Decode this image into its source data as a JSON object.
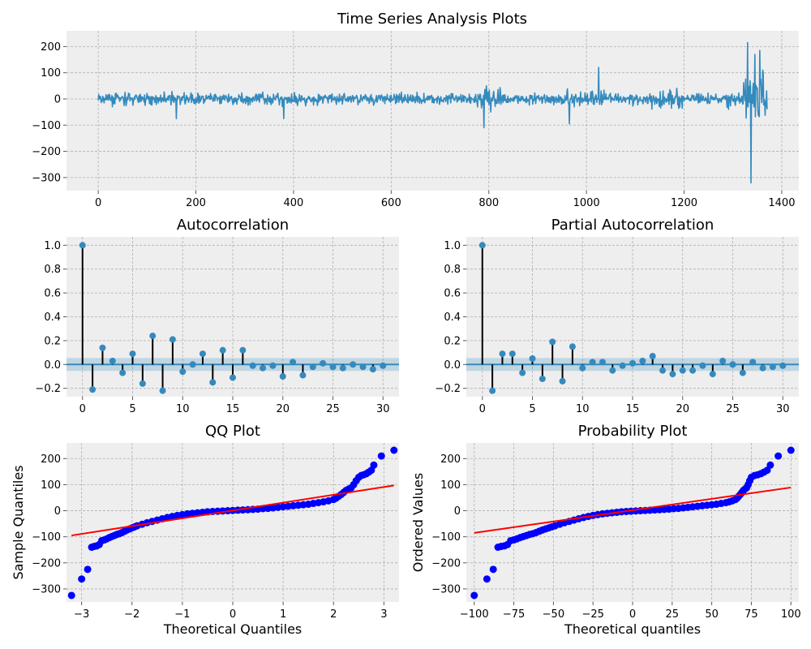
{
  "figure": {
    "background": "#ffffff",
    "panel_background": "#eeeeee",
    "grid_color": "#b0b0b0",
    "series_color": "#348abd",
    "stem_color": "#000000",
    "qq_point_color": "#0000ff",
    "qq_line_color": "#ff0000"
  },
  "chart_data": [
    {
      "id": "ts",
      "type": "line",
      "title": "Time Series Analysis Plots",
      "xlabel": "",
      "ylabel": "",
      "xlim": [
        -65,
        1435
      ],
      "ylim": [
        -350,
        260
      ],
      "xticks": [
        0,
        200,
        400,
        600,
        800,
        1000,
        1200,
        1400
      ],
      "yticks": [
        200,
        100,
        0,
        -100,
        -200,
        -300
      ],
      "grid": true,
      "n_points": 1371,
      "notable_spikes": [
        {
          "x": 160,
          "y": -75
        },
        {
          "x": 380,
          "y": -75
        },
        {
          "x": 790,
          "y": -110
        },
        {
          "x": 795,
          "y": 50
        },
        {
          "x": 965,
          "y": -95
        },
        {
          "x": 1025,
          "y": 120
        },
        {
          "x": 1330,
          "y": 215
        },
        {
          "x": 1337,
          "y": -320
        },
        {
          "x": 1345,
          "y": 170
        },
        {
          "x": 1355,
          "y": 185
        }
      ]
    },
    {
      "id": "acf",
      "type": "stem",
      "title": "Autocorrelation",
      "xlabel": "",
      "ylabel": "",
      "xlim": [
        -1.6,
        31.6
      ],
      "ylim": [
        -0.27,
        1.07
      ],
      "xticks": [
        0,
        5,
        10,
        15,
        20,
        25,
        30
      ],
      "yticks": [
        1.0,
        0.8,
        0.6,
        0.4,
        0.2,
        0.0,
        -0.2
      ],
      "confidence_band": 0.054,
      "lags": [
        0,
        1,
        2,
        3,
        4,
        5,
        6,
        7,
        8,
        9,
        10,
        11,
        12,
        13,
        14,
        15,
        16,
        17,
        18,
        19,
        20,
        21,
        22,
        23,
        24,
        25,
        26,
        27,
        28,
        29,
        30
      ],
      "values": [
        1.0,
        -0.21,
        0.14,
        0.03,
        -0.07,
        0.09,
        -0.16,
        0.24,
        -0.22,
        0.21,
        -0.06,
        0.0,
        0.09,
        -0.15,
        0.12,
        -0.11,
        0.12,
        -0.01,
        -0.03,
        -0.01,
        -0.1,
        0.02,
        -0.09,
        -0.02,
        0.01,
        -0.02,
        -0.03,
        0.0,
        -0.02,
        -0.04,
        -0.01
      ]
    },
    {
      "id": "pacf",
      "type": "stem",
      "title": "Partial Autocorrelation",
      "xlabel": "",
      "ylabel": "",
      "xlim": [
        -1.6,
        31.6
      ],
      "ylim": [
        -0.27,
        1.07
      ],
      "xticks": [
        0,
        5,
        10,
        15,
        20,
        25,
        30
      ],
      "yticks": [
        1.0,
        0.8,
        0.6,
        0.4,
        0.2,
        0.0,
        -0.2
      ],
      "confidence_band": 0.054,
      "lags": [
        0,
        1,
        2,
        3,
        4,
        5,
        6,
        7,
        8,
        9,
        10,
        11,
        12,
        13,
        14,
        15,
        16,
        17,
        18,
        19,
        20,
        21,
        22,
        23,
        24,
        25,
        26,
        27,
        28,
        29,
        30
      ],
      "values": [
        1.0,
        -0.22,
        0.09,
        0.09,
        -0.07,
        0.05,
        -0.12,
        0.19,
        -0.14,
        0.15,
        -0.03,
        0.02,
        0.02,
        -0.05,
        -0.01,
        0.01,
        0.03,
        0.07,
        -0.05,
        -0.08,
        -0.05,
        -0.05,
        -0.01,
        -0.08,
        0.03,
        0.0,
        -0.07,
        0.02,
        -0.03,
        -0.02,
        -0.01
      ]
    },
    {
      "id": "qq",
      "type": "scatter",
      "title": "QQ Plot",
      "xlabel": "Theoretical Quantiles",
      "ylabel": "Sample Quantiles",
      "xlim": [
        -3.3,
        3.3
      ],
      "ylim": [
        -350,
        260
      ],
      "xticks": [
        -3,
        -2,
        -1,
        0,
        1,
        2,
        3
      ],
      "yticks": [
        200,
        100,
        0,
        -100,
        -200,
        -300
      ],
      "fit_line": [
        [
          -3.2,
          -95
        ],
        [
          3.2,
          97
        ]
      ],
      "points": [
        [
          -3.2,
          -325
        ],
        [
          -3.0,
          -262
        ],
        [
          -2.88,
          -225
        ],
        [
          -2.8,
          -140
        ],
        [
          -2.75,
          -137
        ],
        [
          -2.7,
          -135
        ],
        [
          -2.65,
          -130
        ],
        [
          -2.6,
          -115
        ],
        [
          -2.55,
          -112
        ],
        [
          -2.5,
          -108
        ],
        [
          -2.45,
          -103
        ],
        [
          -2.4,
          -99
        ],
        [
          -2.35,
          -95
        ],
        [
          -2.3,
          -91
        ],
        [
          -2.25,
          -88
        ],
        [
          -2.2,
          -84
        ],
        [
          -2.15,
          -79
        ],
        [
          -2.1,
          -74
        ],
        [
          -2.05,
          -70
        ],
        [
          -2.0,
          -66
        ],
        [
          -1.95,
          -62
        ],
        [
          -1.9,
          -58
        ],
        [
          -1.8,
          -52
        ],
        [
          -1.7,
          -46
        ],
        [
          -1.6,
          -41
        ],
        [
          -1.5,
          -36
        ],
        [
          -1.4,
          -31
        ],
        [
          -1.3,
          -26
        ],
        [
          -1.2,
          -22
        ],
        [
          -1.1,
          -18
        ],
        [
          -1.0,
          -15
        ],
        [
          -0.9,
          -12
        ],
        [
          -0.8,
          -10
        ],
        [
          -0.7,
          -8
        ],
        [
          -0.6,
          -6
        ],
        [
          -0.5,
          -4
        ],
        [
          -0.4,
          -3
        ],
        [
          -0.3,
          -2
        ],
        [
          -0.2,
          -1
        ],
        [
          -0.1,
          0
        ],
        [
          0.0,
          1
        ],
        [
          0.1,
          2
        ],
        [
          0.2,
          3
        ],
        [
          0.3,
          4
        ],
        [
          0.4,
          5
        ],
        [
          0.5,
          6
        ],
        [
          0.6,
          8
        ],
        [
          0.7,
          9
        ],
        [
          0.8,
          11
        ],
        [
          0.9,
          13
        ],
        [
          1.0,
          15
        ],
        [
          1.1,
          17
        ],
        [
          1.2,
          19
        ],
        [
          1.3,
          21
        ],
        [
          1.4,
          23
        ],
        [
          1.5,
          25
        ],
        [
          1.6,
          28
        ],
        [
          1.7,
          31
        ],
        [
          1.8,
          34
        ],
        [
          1.9,
          38
        ],
        [
          2.0,
          43
        ],
        [
          2.05,
          48
        ],
        [
          2.1,
          55
        ],
        [
          2.15,
          62
        ],
        [
          2.2,
          70
        ],
        [
          2.25,
          78
        ],
        [
          2.3,
          83
        ],
        [
          2.35,
          88
        ],
        [
          2.4,
          100
        ],
        [
          2.45,
          115
        ],
        [
          2.5,
          128
        ],
        [
          2.55,
          135
        ],
        [
          2.6,
          138
        ],
        [
          2.65,
          142
        ],
        [
          2.7,
          148
        ],
        [
          2.75,
          155
        ],
        [
          2.8,
          175
        ],
        [
          2.95,
          210
        ],
        [
          3.2,
          232
        ]
      ]
    },
    {
      "id": "prob",
      "type": "scatter",
      "title": "Probability Plot",
      "xlabel": "Theoretical quantiles",
      "ylabel": "Ordered Values",
      "xlim": [
        -105,
        105
      ],
      "ylim": [
        -350,
        260
      ],
      "xticks": [
        -100,
        -75,
        -50,
        -25,
        0,
        25,
        50,
        75,
        100
      ],
      "yticks": [
        200,
        100,
        0,
        -100,
        -200,
        -300
      ],
      "fit_line": [
        [
          -100,
          -85
        ],
        [
          100,
          89
        ]
      ],
      "points": [
        [
          -100,
          -325
        ],
        [
          -92,
          -262
        ],
        [
          -88,
          -225
        ],
        [
          -85,
          -140
        ],
        [
          -83,
          -137
        ],
        [
          -81,
          -135
        ],
        [
          -79,
          -130
        ],
        [
          -77,
          -115
        ],
        [
          -75,
          -112
        ],
        [
          -73,
          -108
        ],
        [
          -71,
          -103
        ],
        [
          -69,
          -99
        ],
        [
          -67,
          -95
        ],
        [
          -65,
          -91
        ],
        [
          -63,
          -88
        ],
        [
          -61,
          -84
        ],
        [
          -59,
          -79
        ],
        [
          -57,
          -74
        ],
        [
          -55,
          -70
        ],
        [
          -53,
          -66
        ],
        [
          -51,
          -62
        ],
        [
          -49,
          -58
        ],
        [
          -46,
          -52
        ],
        [
          -43,
          -46
        ],
        [
          -40,
          -41
        ],
        [
          -37,
          -36
        ],
        [
          -34,
          -31
        ],
        [
          -31,
          -26
        ],
        [
          -28,
          -22
        ],
        [
          -25,
          -18
        ],
        [
          -22,
          -15
        ],
        [
          -19,
          -12
        ],
        [
          -16,
          -10
        ],
        [
          -13,
          -8
        ],
        [
          -10,
          -6
        ],
        [
          -7,
          -4
        ],
        [
          -4,
          -3
        ],
        [
          -1,
          -2
        ],
        [
          2,
          -1
        ],
        [
          5,
          0
        ],
        [
          8,
          1
        ],
        [
          11,
          2
        ],
        [
          14,
          3
        ],
        [
          17,
          4
        ],
        [
          20,
          5
        ],
        [
          23,
          6
        ],
        [
          26,
          8
        ],
        [
          29,
          9
        ],
        [
          32,
          11
        ],
        [
          35,
          13
        ],
        [
          38,
          15
        ],
        [
          41,
          17
        ],
        [
          44,
          19
        ],
        [
          47,
          21
        ],
        [
          50,
          23
        ],
        [
          53,
          25
        ],
        [
          56,
          28
        ],
        [
          59,
          31
        ],
        [
          61,
          34
        ],
        [
          63,
          38
        ],
        [
          65,
          43
        ],
        [
          66,
          48
        ],
        [
          67,
          55
        ],
        [
          68,
          62
        ],
        [
          69,
          70
        ],
        [
          70,
          78
        ],
        [
          71,
          83
        ],
        [
          72,
          88
        ],
        [
          73,
          100
        ],
        [
          74,
          115
        ],
        [
          75,
          128
        ],
        [
          77,
          135
        ],
        [
          79,
          138
        ],
        [
          81,
          142
        ],
        [
          83,
          148
        ],
        [
          85,
          155
        ],
        [
          87,
          175
        ],
        [
          92,
          210
        ],
        [
          100,
          232
        ]
      ]
    }
  ]
}
